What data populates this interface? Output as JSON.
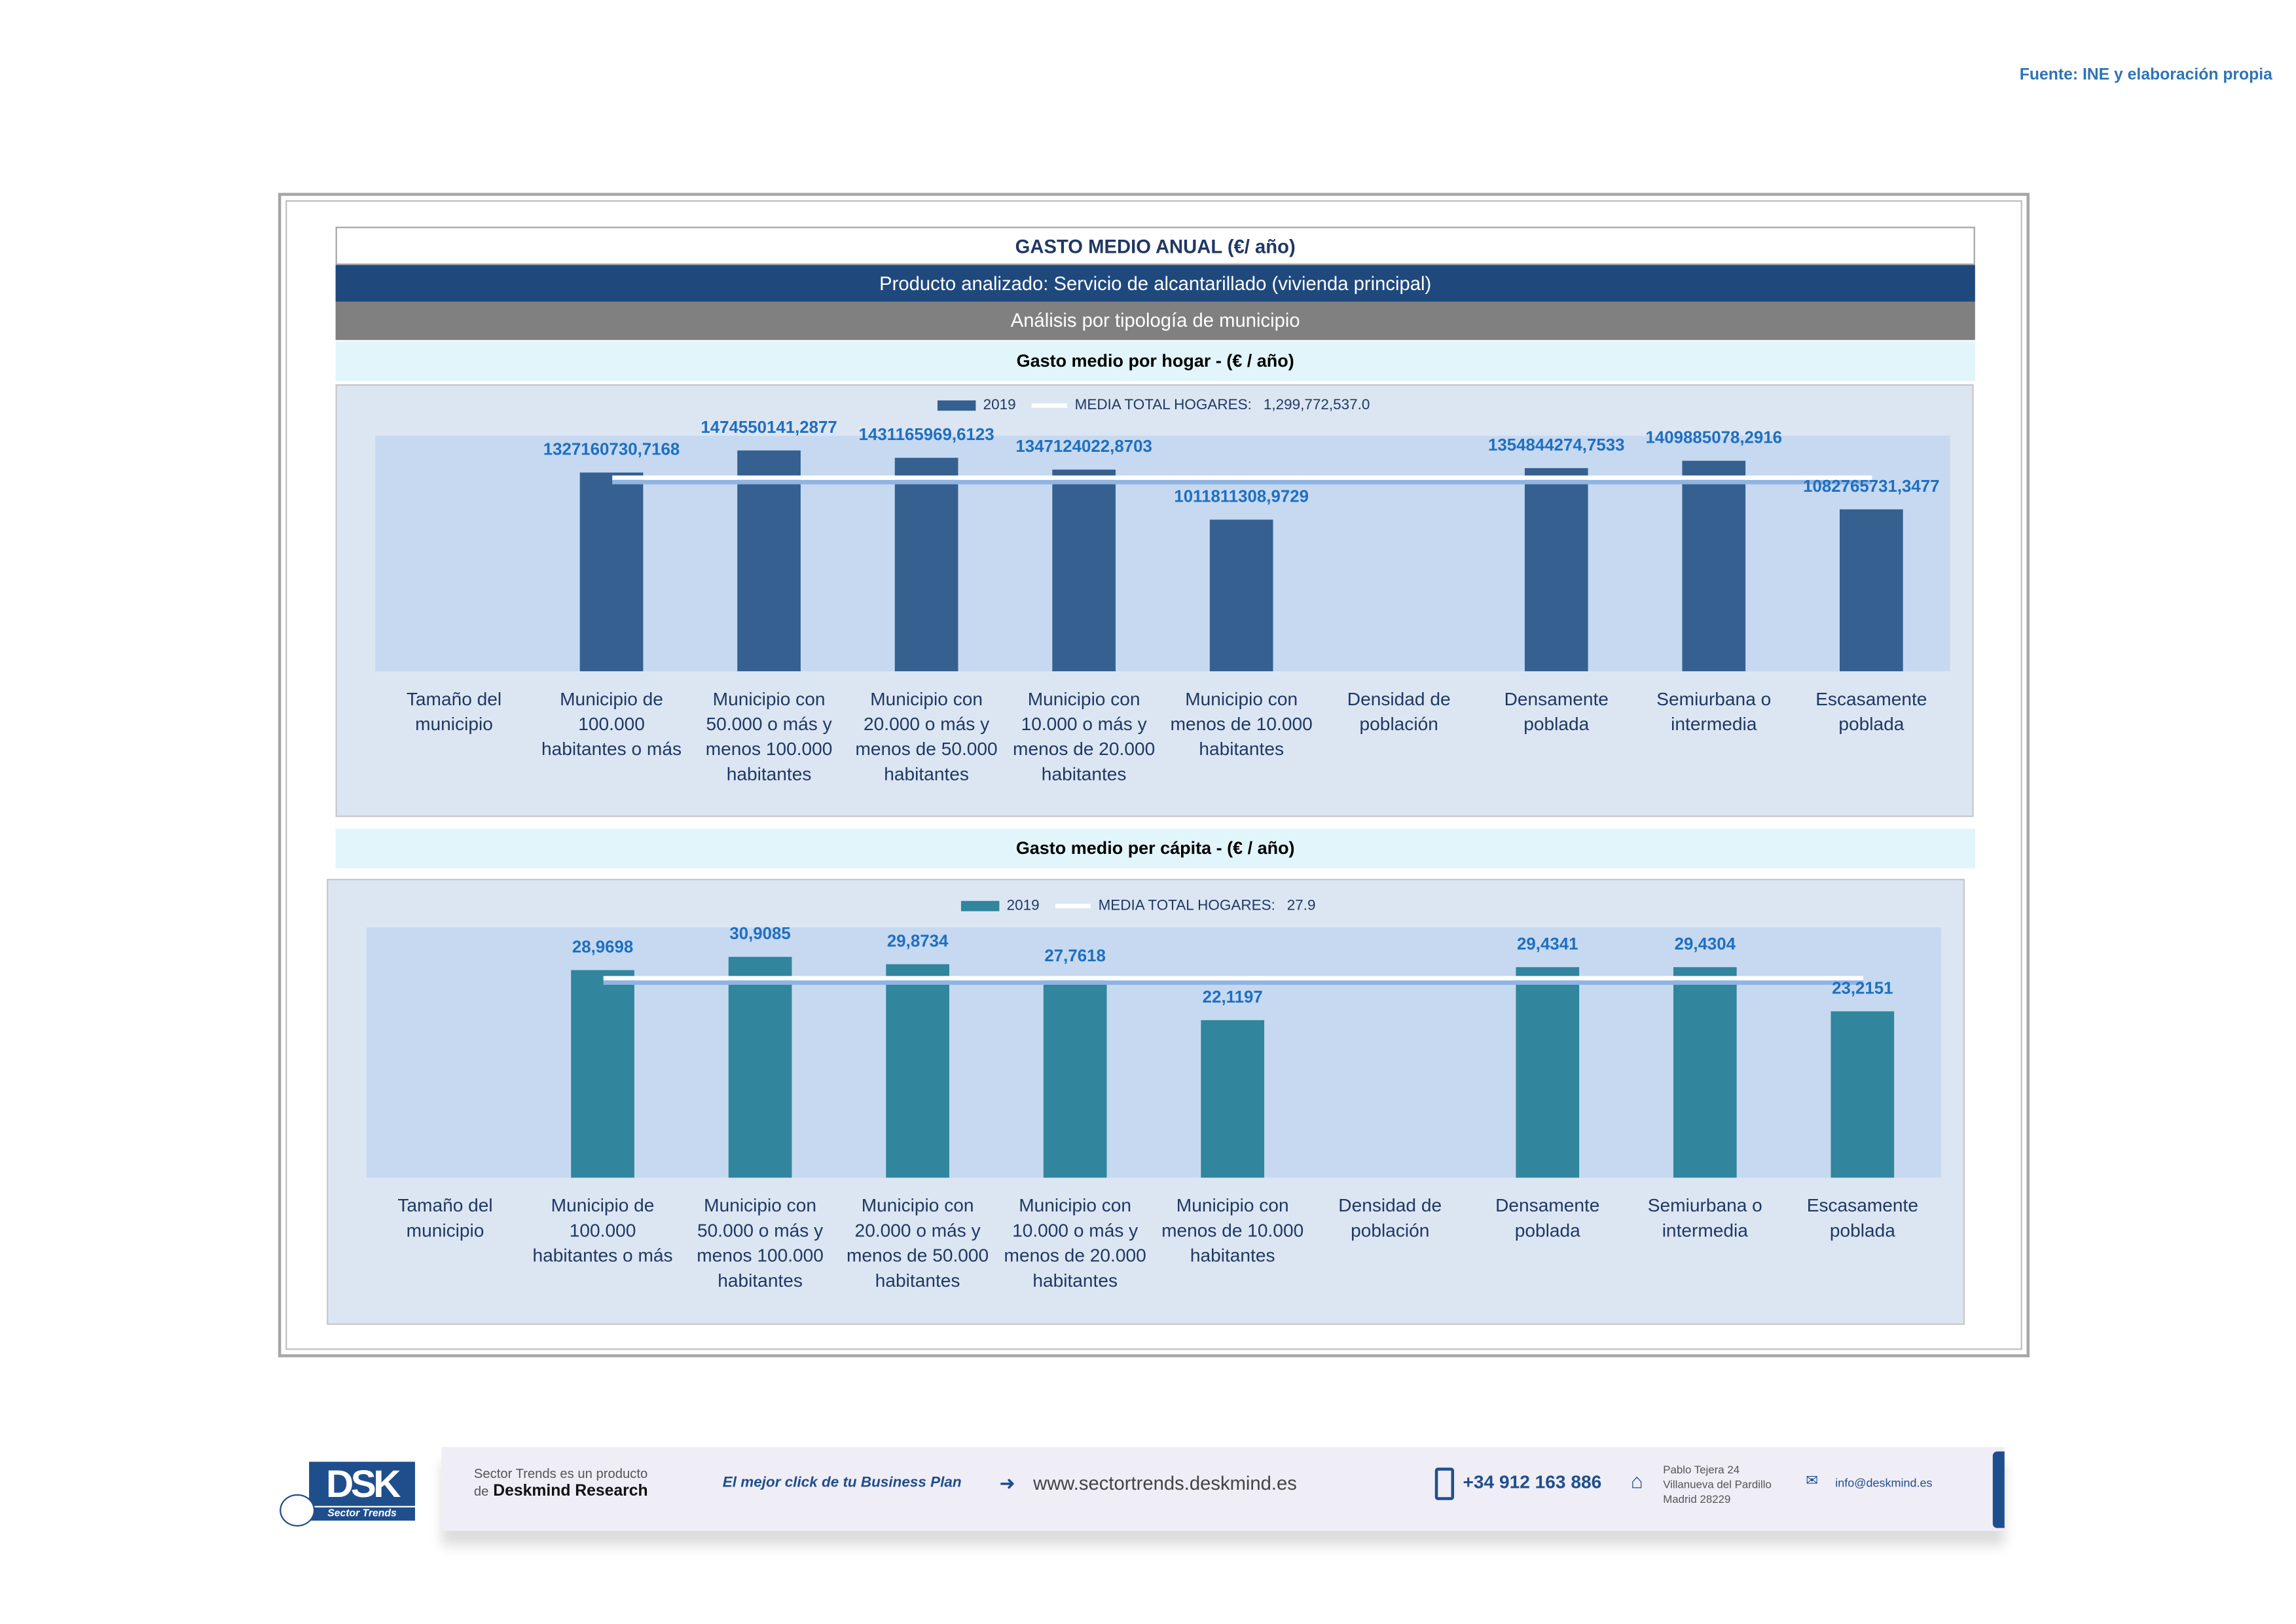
{
  "source": "Fuente: INE y elaboración propia",
  "header": {
    "title": "GASTO MEDIO ANUAL (€/ año)",
    "product": "Producto analizado: Servicio de alcantarillado (vivienda principal)",
    "analysis": "Análisis por tipología de municipio"
  },
  "colors": {
    "bar1": "#35608f",
    "bar2": "#31859c",
    "label": "#1f6fc0",
    "navy": "#1f497d"
  },
  "chart_data": [
    {
      "type": "bar",
      "title": "Gasto medio por hogar -  (€ / año)",
      "legend": {
        "series": "2019",
        "mean_label": "MEDIA TOTAL  HOGARES:",
        "mean_value_text": "1,299,772,537.0",
        "placement": "top-center"
      },
      "categories": [
        "Tamaño del\nmunicipio",
        "Municipio de\n100.000\nhabitantes o más",
        "Municipio con\n50.000 o más y\nmenos 100.000\nhabitantes",
        "Municipio con\n20.000 o más y\nmenos de 50.000\nhabitantes",
        "Municipio con\n10.000 o más y\nmenos de 20.000\nhabitantes",
        "Municipio con\nmenos de 10.000\nhabitantes",
        "Densidad de\npoblación",
        "Densamente\npoblada",
        "Semiurbana o\nintermedia",
        "Escasamente\npoblada"
      ],
      "values": [
        null,
        1327160730.7168,
        1474550141.2877,
        1431165969.6123,
        1347124022.8703,
        1011811308.9729,
        null,
        1354844274.7533,
        1409885078.2916,
        1082765731.3477
      ],
      "value_labels": [
        "",
        "1327160730,7168",
        "1474550141,2877",
        "1431165969,6123",
        "1347124022,8703",
        "1011811308,9729",
        "",
        "1354844274,7533",
        "1409885078,2916",
        "1082765731,3477"
      ],
      "mean": 1299772537.0,
      "ylim": [
        0,
        1575000000
      ]
    },
    {
      "type": "bar",
      "title": "Gasto medio per cápita -  (€ / año)",
      "legend": {
        "series": "2019",
        "mean_label": "MEDIA TOTAL  HOGARES:",
        "mean_value_text": "27.9",
        "placement": "top-center"
      },
      "categories": [
        "Tamaño del\nmunicipio",
        "Municipio de\n100.000\nhabitantes o más",
        "Municipio con\n50.000 o más y\nmenos 100.000\nhabitantes",
        "Municipio con\n20.000 o más y\nmenos de 50.000\nhabitantes",
        "Municipio con\n10.000 o más y\nmenos de 20.000\nhabitantes",
        "Municipio con\nmenos de 10.000\nhabitantes",
        "Densidad de\npoblación",
        "Densamente\npoblada",
        "Semiurbana o\nintermedia",
        "Escasamente\npoblada"
      ],
      "values": [
        null,
        28.9698,
        30.9085,
        29.8734,
        27.7618,
        22.1197,
        null,
        29.4341,
        29.4304,
        23.2151
      ],
      "value_labels": [
        "",
        "28,9698",
        "30,9085",
        "29,8734",
        "27,7618",
        "22,1197",
        "",
        "29,4341",
        "29,4304",
        "23,2151"
      ],
      "mean": 27.9,
      "ylim": [
        0,
        35
      ]
    }
  ],
  "footer": {
    "logo_text": "DSK",
    "logo_sub": "Sector Trends",
    "product_line1": "Sector Trends es un producto",
    "product_line2_prefix": "de",
    "product_line2_brand": "Deskmind Research",
    "slogan": "El mejor click de tu Business Plan",
    "website": "www.sectortrends.deskmind.es",
    "phone": "+34 912 163 886",
    "address1": "Pablo Tejera 24",
    "address2": "Villanueva del Pardillo",
    "address3": "Madrid 28229",
    "email": "info@deskmind.es"
  }
}
